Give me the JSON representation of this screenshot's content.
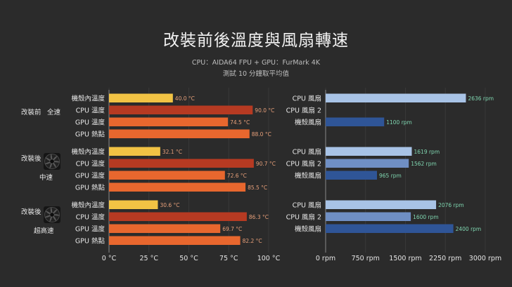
{
  "title": "改裝前後溫度與風扇轉速",
  "subtitle_line1": "CPU：AIDA64 FPU + GPU：FurMark 4K",
  "subtitle_line2": "測試 10 分鐘取平均值",
  "chart_data": [
    {
      "type": "bar",
      "orientation": "horizontal",
      "name": "temperature",
      "xlim": [
        0,
        100
      ],
      "xticks": [
        0,
        25,
        50,
        75,
        100
      ],
      "tick_suffix": " °C",
      "groups": [
        {
          "label_lines": [
            "改裝前",
            "全速"
          ],
          "has_fan_icon": false,
          "bars": [
            {
              "label": "機殼內溫度",
              "value": 40.0,
              "value_label": "40.0 °C",
              "color": "#f2c344"
            },
            {
              "label": "CPU 溫度",
              "value": 90.0,
              "value_label": "90.0 °C",
              "color": "#b63a22"
            },
            {
              "label": "GPU 溫度",
              "value": 74.5,
              "value_label": "74.5 °C",
              "color": "#e8672e"
            },
            {
              "label": "GPU 熱點",
              "value": 88.0,
              "value_label": "88.0 °C",
              "color": "#e8672e"
            }
          ]
        },
        {
          "label_lines": [
            "改裝後",
            "中速"
          ],
          "has_fan_icon": true,
          "bars": [
            {
              "label": "機殼內溫度",
              "value": 32.1,
              "value_label": "32.1 °C",
              "color": "#f2c344"
            },
            {
              "label": "CPU 溫度",
              "value": 90.7,
              "value_label": "90.7 °C",
              "color": "#b63a22"
            },
            {
              "label": "GPU 溫度",
              "value": 72.6,
              "value_label": "72.6 °C",
              "color": "#e8672e"
            },
            {
              "label": "GPU 熱點",
              "value": 85.5,
              "value_label": "85.5 °C",
              "color": "#e8672e"
            }
          ]
        },
        {
          "label_lines": [
            "改裝後",
            "超高速"
          ],
          "has_fan_icon": true,
          "bars": [
            {
              "label": "機殼內溫度",
              "value": 30.6,
              "value_label": "30.6 °C",
              "color": "#f2c344"
            },
            {
              "label": "CPU 溫度",
              "value": 86.3,
              "value_label": "86.3 °C",
              "color": "#b63a22"
            },
            {
              "label": "GPU 溫度",
              "value": 69.7,
              "value_label": "69.7 °C",
              "color": "#e8672e"
            },
            {
              "label": "GPU 熱點",
              "value": 82.2,
              "value_label": "82.2 °C",
              "color": "#e8672e"
            }
          ]
        }
      ]
    },
    {
      "type": "bar",
      "orientation": "horizontal",
      "name": "fan_speed",
      "xlim": [
        0,
        3000
      ],
      "xticks": [
        0,
        750,
        1500,
        2250,
        3000
      ],
      "tick_suffix": " rpm",
      "groups": [
        {
          "bars": [
            {
              "label": "CPU 風扇",
              "value": 2636,
              "value_label": "2636 rpm",
              "color": "#a8c3e6"
            },
            {
              "label": "CPU 風扇 2",
              "value": null,
              "value_label": "",
              "color": "#6f8fc4"
            },
            {
              "label": "機殼風扇",
              "value": 1100,
              "value_label": "1100 rpm",
              "color": "#2f5597"
            }
          ]
        },
        {
          "bars": [
            {
              "label": "CPU 風扇",
              "value": 1619,
              "value_label": "1619 rpm",
              "color": "#a8c3e6"
            },
            {
              "label": "CPU 風扇 2",
              "value": 1562,
              "value_label": "1562 rpm",
              "color": "#6f8fc4"
            },
            {
              "label": "機殼風扇",
              "value": 965,
              "value_label": "965 rpm",
              "color": "#2f5597"
            }
          ]
        },
        {
          "bars": [
            {
              "label": "CPU 風扇",
              "value": 2076,
              "value_label": "2076 rpm",
              "color": "#a8c3e6"
            },
            {
              "label": "CPU 風扇 2",
              "value": 1600,
              "value_label": "1600 rpm",
              "color": "#6f8fc4"
            },
            {
              "label": "機殼風扇",
              "value": 2400,
              "value_label": "2400 rpm",
              "color": "#2f5597"
            }
          ]
        }
      ]
    }
  ]
}
